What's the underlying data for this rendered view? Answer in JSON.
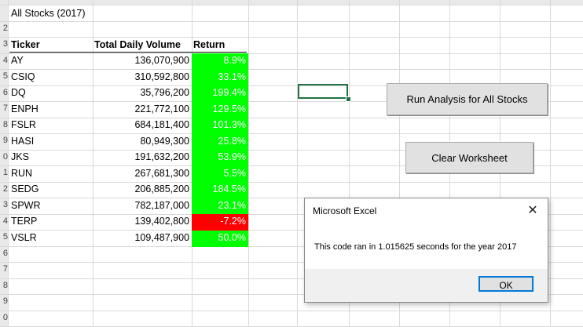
{
  "sheet": {
    "title_cell": "All Stocks (2017)",
    "row_numbers": [
      "2",
      "3",
      "4",
      "5",
      "6",
      "7",
      "8",
      "9",
      "0",
      "1",
      "2",
      "3",
      "4",
      "5",
      "6",
      "7",
      "8",
      "9",
      "0"
    ],
    "headers": {
      "ticker": "Ticker",
      "volume": "Total Daily Volume",
      "return": "Return"
    },
    "rows": [
      {
        "ticker": "AY",
        "volume": "136,070,900",
        "return": "8.9%",
        "status": "positive"
      },
      {
        "ticker": "CSIQ",
        "volume": "310,592,800",
        "return": "33.1%",
        "status": "positive"
      },
      {
        "ticker": "DQ",
        "volume": "35,796,200",
        "return": "199.4%",
        "status": "positive"
      },
      {
        "ticker": "ENPH",
        "volume": "221,772,100",
        "return": "129.5%",
        "status": "positive"
      },
      {
        "ticker": "FSLR",
        "volume": "684,181,400",
        "return": "101.3%",
        "status": "positive"
      },
      {
        "ticker": "HASI",
        "volume": "80,949,300",
        "return": "25.8%",
        "status": "positive"
      },
      {
        "ticker": "JKS",
        "volume": "191,632,200",
        "return": "53.9%",
        "status": "positive"
      },
      {
        "ticker": "RUN",
        "volume": "267,681,300",
        "return": "5.5%",
        "status": "positive"
      },
      {
        "ticker": "SEDG",
        "volume": "206,885,200",
        "return": "184.5%",
        "status": "positive"
      },
      {
        "ticker": "SPWR",
        "volume": "782,187,000",
        "return": "23.1%",
        "status": "positive"
      },
      {
        "ticker": "TERP",
        "volume": "139,402,800",
        "return": "-7.2%",
        "status": "negative"
      },
      {
        "ticker": "VSLR",
        "volume": "109,487,900",
        "return": "50.0%",
        "status": "positive"
      }
    ]
  },
  "buttons": {
    "run_analysis": "Run Analysis for All Stocks",
    "clear_worksheet": "Clear Worksheet"
  },
  "dialog": {
    "title": "Microsoft Excel",
    "close_glyph": "✕",
    "message": "This code ran in 1.015625 seconds for the year 2017",
    "ok_label": "OK"
  },
  "colors": {
    "positive_fill": "#00ff00",
    "negative_fill": "#ff0000",
    "selection_border": "#217346",
    "ok_focus_border": "#0078d7"
  },
  "selected_cell": "highlighted empty cell near Run Analysis button"
}
